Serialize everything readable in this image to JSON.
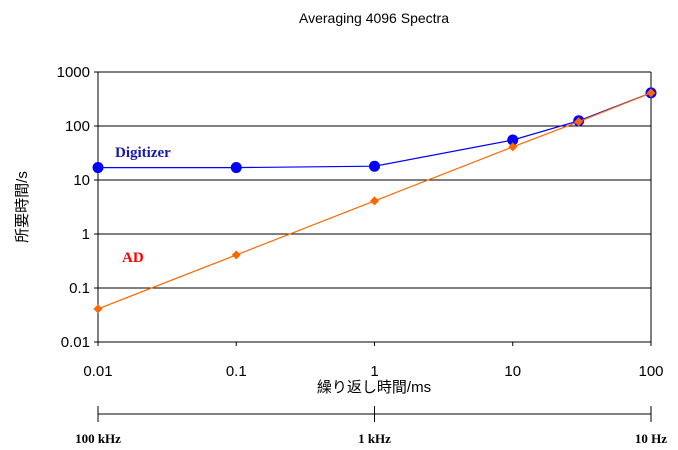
{
  "chart_data": {
    "type": "line",
    "title": "Averaging 4096 Spectra",
    "xlabel": "繰り返し時間/ms",
    "ylabel": "所要時間/s",
    "x_scale": "log",
    "y_scale": "log",
    "xlim": [
      0.01,
      100
    ],
    "ylim": [
      0.01,
      1000
    ],
    "x_ticks": [
      "0.01",
      "0.1",
      "1",
      "10",
      "100"
    ],
    "y_ticks": [
      "1000",
      "100",
      "10",
      "1",
      "0.1",
      "0.01"
    ],
    "grid": "horizontal",
    "series": [
      {
        "name": "Digitizer",
        "color": "#0000ff",
        "marker": "circle",
        "x": [
          0.01,
          0.1,
          1,
          10,
          30,
          100
        ],
        "y": [
          17,
          17,
          18,
          55,
          125,
          410
        ]
      },
      {
        "name": "AD",
        "color": "#ff6600",
        "marker": "diamond",
        "x": [
          0.01,
          0.1,
          1,
          10,
          30,
          100
        ],
        "y": [
          0.041,
          0.41,
          4.1,
          41,
          120,
          410
        ]
      }
    ],
    "secondary_axis": {
      "ticks": [
        {
          "x": 0.01,
          "label": "100 kHz"
        },
        {
          "x": 1,
          "label": "1 kHz"
        },
        {
          "x": 100,
          "label": "10 Hz"
        }
      ]
    }
  }
}
